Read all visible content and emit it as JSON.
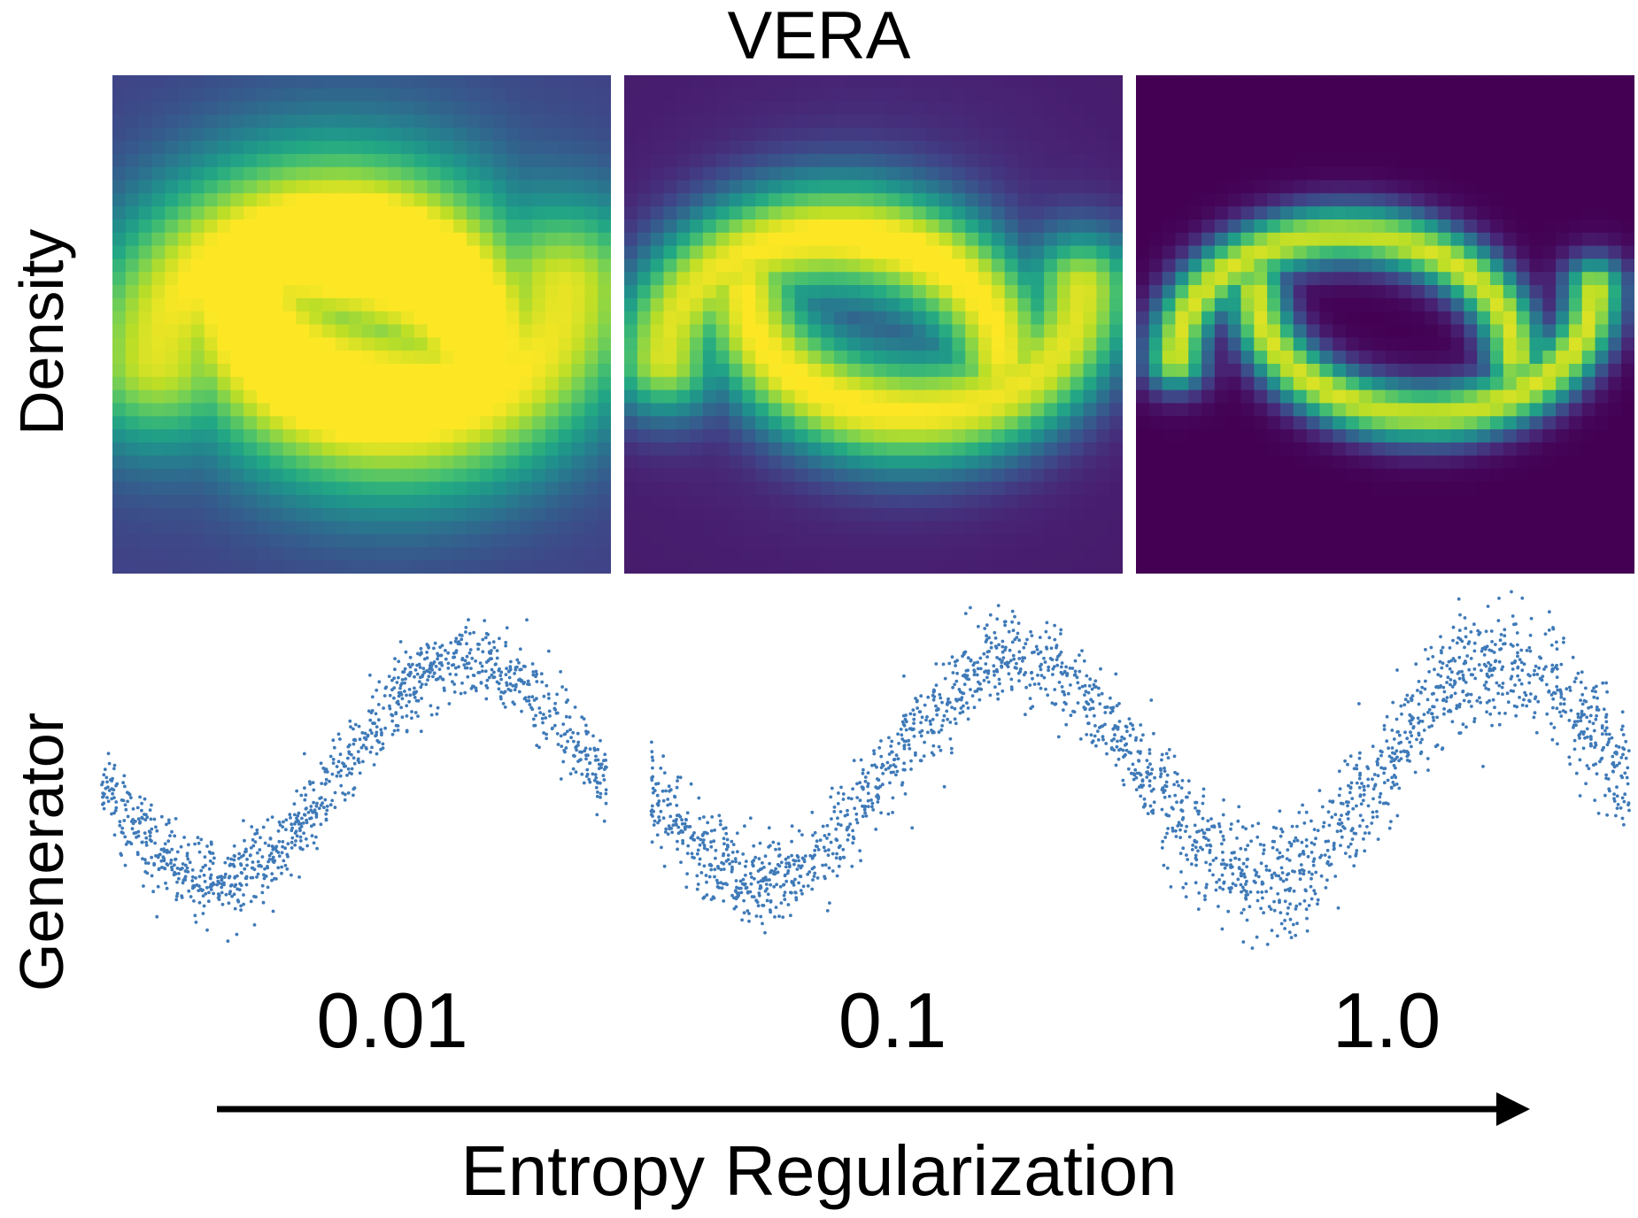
{
  "title": "VERA",
  "row_labels": {
    "top": "Density",
    "bottom": "Generator"
  },
  "colormap": "viridis",
  "point_color": "#3f7ab8",
  "panels": [
    {
      "entropy_label": "0.01",
      "density_background": 0.55,
      "density_sharpness": 0.55
    },
    {
      "entropy_label": "0.1",
      "density_background": 0.22,
      "density_sharpness": 0.85
    },
    {
      "entropy_label": "1.0",
      "density_background": 0.0,
      "density_sharpness": 1.6
    }
  ],
  "axis": {
    "caption": "Entropy Regularization",
    "direction": "increasing-right"
  }
}
